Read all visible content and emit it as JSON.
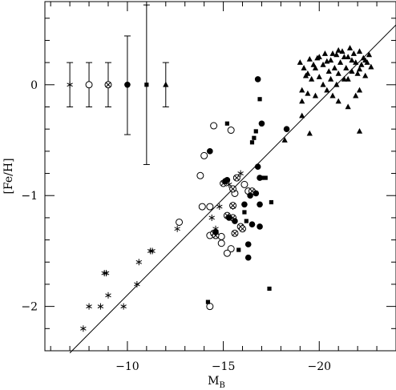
{
  "chart_data": {
    "type": "scatter",
    "xlabel": "M",
    "xlabel_sub": "B",
    "ylabel": "[Fe/H]",
    "xlim": [
      -5.7,
      -24
    ],
    "ylim": [
      -2.4,
      0.75
    ],
    "x_ticks": [
      -10,
      -15,
      -20
    ],
    "x_tick_labels": [
      "−10",
      "−15",
      "−20"
    ],
    "y_ticks": [
      0,
      -1,
      -2
    ],
    "y_tick_labels": [
      "0",
      "−1",
      "−2"
    ],
    "grid": false,
    "fit_line": {
      "x": [
        -7.0,
        -24.0
      ],
      "y": [
        -2.42,
        0.54
      ]
    },
    "error_bars": [
      {
        "marker": "asterisk",
        "x": -7.0,
        "y": 0.0,
        "lo": -0.2,
        "hi": 0.2
      },
      {
        "marker": "circle-open",
        "x": -8.0,
        "y": 0.0,
        "lo": -0.2,
        "hi": 0.2
      },
      {
        "marker": "circle-cross",
        "x": -9.0,
        "y": 0.0,
        "lo": -0.2,
        "hi": 0.2
      },
      {
        "marker": "circle-filled",
        "x": -10.0,
        "y": 0.0,
        "lo": -0.45,
        "hi": 0.44
      },
      {
        "marker": "square-filled",
        "x": -11.0,
        "y": 0.0,
        "lo": -0.72,
        "hi": 0.72
      },
      {
        "marker": "triangle-filled",
        "x": -12.0,
        "y": 0.0,
        "lo": -0.2,
        "hi": 0.2
      }
    ],
    "series": [
      {
        "marker": "asterisk",
        "points": [
          [
            -7.7,
            -2.2
          ],
          [
            -8.0,
            -2.0
          ],
          [
            -8.6,
            -2.0
          ],
          [
            -9.0,
            -1.9
          ],
          [
            -9.8,
            -2.0
          ],
          [
            -10.5,
            -1.8
          ],
          [
            -8.9,
            -1.7
          ],
          [
            -8.8,
            -1.7
          ],
          [
            -10.6,
            -1.6
          ],
          [
            -11.2,
            -1.5
          ],
          [
            -11.3,
            -1.5
          ],
          [
            -12.6,
            -1.3
          ],
          [
            -14.4,
            -1.2
          ],
          [
            -14.8,
            -1.1
          ],
          [
            -15.5,
            -1.1
          ],
          [
            -15.9,
            -0.8
          ],
          [
            -15.3,
            -0.9
          ],
          [
            -14.6,
            -1.3
          ]
        ]
      },
      {
        "marker": "circle-open",
        "points": [
          [
            -14.5,
            -0.37
          ],
          [
            -15.4,
            -0.41
          ],
          [
            -14.0,
            -0.64
          ],
          [
            -13.8,
            -0.82
          ],
          [
            -13.9,
            -1.1
          ],
          [
            -14.3,
            -1.1
          ],
          [
            -15.6,
            -0.98
          ],
          [
            -16.1,
            -0.9
          ],
          [
            -16.3,
            -0.96
          ],
          [
            -12.7,
            -1.24
          ],
          [
            -14.9,
            -1.37
          ],
          [
            -14.3,
            -1.36
          ],
          [
            -14.9,
            -1.43
          ],
          [
            -15.4,
            -1.48
          ],
          [
            -15.2,
            -1.52
          ],
          [
            -14.3,
            -2.0
          ]
        ]
      },
      {
        "marker": "circle-cross",
        "points": [
          [
            -15.0,
            -0.89
          ],
          [
            -15.5,
            -0.94
          ],
          [
            -15.7,
            -0.84
          ],
          [
            -15.5,
            -1.09
          ],
          [
            -16.5,
            -0.96
          ],
          [
            -15.2,
            -1.18
          ],
          [
            -15.5,
            -1.2
          ],
          [
            -15.6,
            -1.34
          ],
          [
            -15.9,
            -1.28
          ],
          [
            -16.0,
            -1.3
          ],
          [
            -14.5,
            -1.34
          ],
          [
            -14.6,
            -1.36
          ]
        ]
      },
      {
        "marker": "circle-filled",
        "points": [
          [
            -16.8,
            0.05
          ],
          [
            -17.0,
            -0.35
          ],
          [
            -18.3,
            -0.4
          ],
          [
            -14.3,
            -0.6
          ],
          [
            -15.1,
            -0.87
          ],
          [
            -15.2,
            -0.86
          ],
          [
            -16.8,
            -0.74
          ],
          [
            -16.9,
            -0.84
          ],
          [
            -16.4,
            -1.0
          ],
          [
            -16.7,
            -0.98
          ],
          [
            -16.1,
            -1.08
          ],
          [
            -15.3,
            -1.2
          ],
          [
            -15.6,
            -1.23
          ],
          [
            -14.6,
            -1.33
          ],
          [
            -16.5,
            -1.26
          ],
          [
            -16.9,
            -1.08
          ],
          [
            -16.9,
            -1.28
          ],
          [
            -16.3,
            -1.44
          ],
          [
            -16.3,
            -1.56
          ]
        ]
      },
      {
        "marker": "square-filled",
        "points": [
          [
            -16.9,
            -0.13
          ],
          [
            -15.2,
            -0.35
          ],
          [
            -16.7,
            -0.42
          ],
          [
            -16.6,
            -0.48
          ],
          [
            -16.5,
            -0.52
          ],
          [
            -17.2,
            -0.84
          ],
          [
            -17.0,
            -0.84
          ],
          [
            -17.5,
            -1.06
          ],
          [
            -16.1,
            -1.15
          ],
          [
            -16.2,
            -1.23
          ],
          [
            -15.8,
            -1.49
          ],
          [
            -17.4,
            -1.84
          ],
          [
            -14.2,
            -1.96
          ]
        ]
      },
      {
        "marker": "triangle-filled",
        "points": [
          [
            -19.0,
            0.2
          ],
          [
            -19.2,
            0.15
          ],
          [
            -19.5,
            0.23
          ],
          [
            -19.3,
            0.08
          ],
          [
            -19.6,
            0.05
          ],
          [
            -19.8,
            0.15
          ],
          [
            -19.9,
            0.24
          ],
          [
            -20.0,
            0.07
          ],
          [
            -20.2,
            0.18
          ],
          [
            -20.2,
            0.0
          ],
          [
            -20.3,
            0.28
          ],
          [
            -20.5,
            0.12
          ],
          [
            -20.6,
            0.22
          ],
          [
            -20.6,
            0.05
          ],
          [
            -20.8,
            0.15
          ],
          [
            -20.9,
            0.27
          ],
          [
            -20.9,
            0.0
          ],
          [
            -21.0,
            0.1
          ],
          [
            -21.1,
            0.2
          ],
          [
            -21.2,
            0.3
          ],
          [
            -21.3,
            0.05
          ],
          [
            -21.4,
            0.15
          ],
          [
            -21.5,
            0.25
          ],
          [
            -21.5,
            0.05
          ],
          [
            -21.6,
            0.33
          ],
          [
            -21.7,
            0.12
          ],
          [
            -21.8,
            0.28
          ],
          [
            -21.9,
            0.2
          ],
          [
            -22.0,
            0.1
          ],
          [
            -22.1,
            0.3
          ],
          [
            -22.2,
            0.18
          ],
          [
            -22.3,
            0.24
          ],
          [
            -22.4,
            0.08
          ],
          [
            -22.5,
            0.2
          ],
          [
            -22.6,
            0.27
          ],
          [
            -22.7,
            0.16
          ],
          [
            -22.4,
            0.22
          ],
          [
            -22.1,
            0.14
          ],
          [
            -21.7,
            0.22
          ],
          [
            -21.3,
            0.25
          ],
          [
            -21.0,
            0.31
          ],
          [
            -20.7,
            0.28
          ],
          [
            -20.4,
            0.21
          ],
          [
            -20.0,
            0.25
          ],
          [
            -19.7,
            0.18
          ],
          [
            -19.4,
            0.1
          ],
          [
            -19.1,
            -0.05
          ],
          [
            -19.1,
            -0.15
          ],
          [
            -19.4,
            -0.08
          ],
          [
            -19.8,
            -0.1
          ],
          [
            -20.4,
            -0.05
          ],
          [
            -20.7,
            -0.1
          ],
          [
            -21.0,
            -0.15
          ],
          [
            -21.5,
            -0.2
          ],
          [
            -21.9,
            -0.1
          ],
          [
            -22.1,
            -0.05
          ],
          [
            -19.1,
            -0.28
          ],
          [
            -19.5,
            -0.44
          ],
          [
            -18.2,
            -0.5
          ],
          [
            -22.1,
            -0.42
          ]
        ]
      }
    ]
  }
}
